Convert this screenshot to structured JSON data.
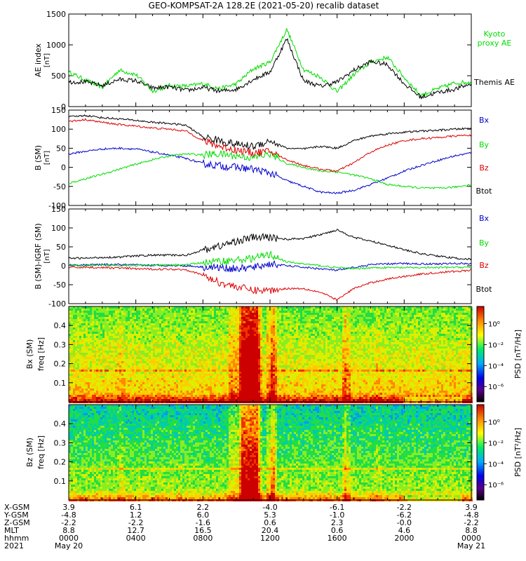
{
  "title": "GEO-KOMPSAT-2A 128.2E (2021-05-20) recalib dataset",
  "colors": {
    "black": "#000000",
    "blue": "#0000cc",
    "green": "#00dd00",
    "red": "#dd0000"
  },
  "chart_data": [
    {
      "type": "line",
      "panel": "ae",
      "ylabel": "AE index",
      "yunit": "[nT]",
      "ylim": [
        0,
        1500
      ],
      "yticks": [
        0,
        500,
        1000,
        1500
      ],
      "x_hours": [
        0,
        1,
        2,
        3,
        4,
        5,
        6,
        7,
        8,
        9,
        10,
        11,
        12,
        13,
        14,
        15,
        16,
        17,
        18,
        19,
        20,
        21,
        22,
        23,
        24
      ],
      "series": [
        {
          "name": "Kyoto proxy AE",
          "color": "green",
          "values": [
            560,
            430,
            310,
            590,
            520,
            250,
            340,
            330,
            370,
            290,
            370,
            610,
            720,
            1250,
            600,
            480,
            240,
            520,
            720,
            800,
            470,
            180,
            290,
            380,
            400
          ]
        },
        {
          "name": "Themis AE",
          "color": "black",
          "values": [
            400,
            400,
            340,
            440,
            420,
            300,
            320,
            260,
            310,
            250,
            280,
            440,
            560,
            1100,
            420,
            330,
            400,
            590,
            730,
            680,
            370,
            150,
            230,
            280,
            370
          ]
        }
      ]
    },
    {
      "type": "line",
      "panel": "b_sm",
      "ylabel": "B (SM)",
      "yunit": "[nT]",
      "ylim": [
        -100,
        150
      ],
      "yticks": [
        -100,
        -50,
        0,
        50,
        100,
        150
      ],
      "x_hours": [
        0,
        1,
        2,
        3,
        4,
        5,
        6,
        7,
        8,
        9,
        10,
        11,
        12,
        13,
        14,
        15,
        16,
        17,
        18,
        19,
        20,
        21,
        22,
        23,
        24
      ],
      "series": [
        {
          "name": "Bx",
          "color": "blue",
          "values": [
            35,
            42,
            48,
            50,
            48,
            40,
            32,
            23,
            10,
            4,
            0,
            -5,
            -15,
            -35,
            -50,
            -65,
            -68,
            -60,
            -45,
            -28,
            -10,
            5,
            18,
            30,
            38
          ]
        },
        {
          "name": "By",
          "color": "green",
          "values": [
            -42,
            -30,
            -18,
            -5,
            8,
            20,
            30,
            35,
            33,
            35,
            30,
            25,
            35,
            10,
            0,
            -10,
            -12,
            -20,
            -30,
            -45,
            -50,
            -54,
            -55,
            -52,
            -45
          ]
        },
        {
          "name": "Bz",
          "color": "red",
          "values": [
            120,
            125,
            118,
            112,
            108,
            103,
            100,
            95,
            70,
            55,
            45,
            38,
            42,
            20,
            5,
            -5,
            -10,
            12,
            40,
            58,
            70,
            75,
            78,
            82,
            85
          ]
        },
        {
          "name": "Btot",
          "color": "black",
          "values": [
            132,
            136,
            130,
            127,
            123,
            118,
            115,
            110,
            80,
            70,
            60,
            55,
            70,
            50,
            48,
            55,
            50,
            70,
            82,
            88,
            92,
            95,
            97,
            100,
            102
          ]
        }
      ]
    },
    {
      "type": "line",
      "panel": "b_sm_igrf",
      "ylabel": "B (SM)-IGRF (SM)",
      "yunit": "[nT]",
      "ylim": [
        -100,
        150
      ],
      "yticks": [
        -100,
        -50,
        0,
        50,
        100,
        150
      ],
      "x_hours": [
        0,
        1,
        2,
        3,
        4,
        5,
        6,
        7,
        8,
        9,
        10,
        11,
        12,
        13,
        14,
        15,
        16,
        17,
        18,
        19,
        20,
        21,
        22,
        23,
        24
      ],
      "series": [
        {
          "name": "Bx",
          "color": "blue",
          "values": [
            2,
            2,
            3,
            3,
            2,
            1,
            1,
            0,
            -3,
            -5,
            -8,
            -5,
            5,
            0,
            -4,
            -8,
            -12,
            -5,
            3,
            5,
            6,
            5,
            5,
            6,
            6
          ]
        },
        {
          "name": "By",
          "color": "green",
          "values": [
            0,
            0,
            1,
            1,
            1,
            1,
            2,
            3,
            8,
            12,
            15,
            20,
            30,
            10,
            5,
            0,
            -5,
            -8,
            -5,
            -5,
            -5,
            -5,
            -5,
            -4,
            -4
          ]
        },
        {
          "name": "Bz",
          "color": "red",
          "values": [
            -5,
            -4,
            -5,
            -6,
            -8,
            -9,
            -9,
            -10,
            -25,
            -45,
            -55,
            -65,
            -65,
            -60,
            -60,
            -70,
            -90,
            -60,
            -45,
            -35,
            -28,
            -22,
            -18,
            -15,
            -12
          ]
        },
        {
          "name": "Btot",
          "color": "black",
          "values": [
            20,
            20,
            22,
            23,
            26,
            28,
            28,
            28,
            42,
            52,
            65,
            75,
            75,
            70,
            72,
            82,
            95,
            75,
            65,
            55,
            42,
            32,
            26,
            20,
            17
          ]
        }
      ]
    },
    {
      "type": "heatmap",
      "panel": "bx_spec",
      "ylabel": "Bx (SM)",
      "yunit": "freq [Hz]",
      "ylim": [
        0,
        0.5
      ],
      "yticks": [
        0.1,
        0.2,
        0.3,
        0.4
      ],
      "colorbar_label": "PSD [nT²/Hz]",
      "colorbar_ticks": [
        "10⁰",
        "10⁻²",
        "10⁻⁴",
        "10⁻⁶"
      ]
    },
    {
      "type": "heatmap",
      "panel": "bz_spec",
      "ylabel": "Bz (SM)",
      "yunit": "freq [Hz]",
      "ylim": [
        0,
        0.5
      ],
      "yticks": [
        0.1,
        0.2,
        0.3,
        0.4
      ],
      "colorbar_label": "PSD [nT²/Hz]",
      "colorbar_ticks": [
        "10⁰",
        "10⁻²",
        "10⁻⁴",
        "10⁻⁶"
      ]
    }
  ],
  "ephemeris": {
    "labels": [
      "X-GSM",
      "Y-GSM",
      "Z-GSM",
      "MLT",
      "hhmm",
      "2021"
    ],
    "columns": [
      {
        "hour": 0,
        "values": [
          "3.9",
          "-4.8",
          "-2.2",
          "8.8",
          "0000",
          "May 20"
        ]
      },
      {
        "hour": 4,
        "values": [
          "6.1",
          "1.2",
          "-2.2",
          "12.7",
          "0400",
          ""
        ]
      },
      {
        "hour": 8,
        "values": [
          "2.2",
          "6.0",
          "-1.6",
          "16.5",
          "0800",
          ""
        ]
      },
      {
        "hour": 12,
        "values": [
          "-4.0",
          "5.3",
          "0.6",
          "20.4",
          "1200",
          ""
        ]
      },
      {
        "hour": 16,
        "values": [
          "-6.1",
          "-1.0",
          "2.3",
          "0.6",
          "1600",
          ""
        ]
      },
      {
        "hour": 20,
        "values": [
          "-2.2",
          "-6.2",
          "-0.0",
          "4.6",
          "2000",
          ""
        ]
      },
      {
        "hour": 24,
        "values": [
          "3.9",
          "-4.8",
          "-2.2",
          "8.8",
          "0000",
          "May 21"
        ]
      }
    ]
  }
}
